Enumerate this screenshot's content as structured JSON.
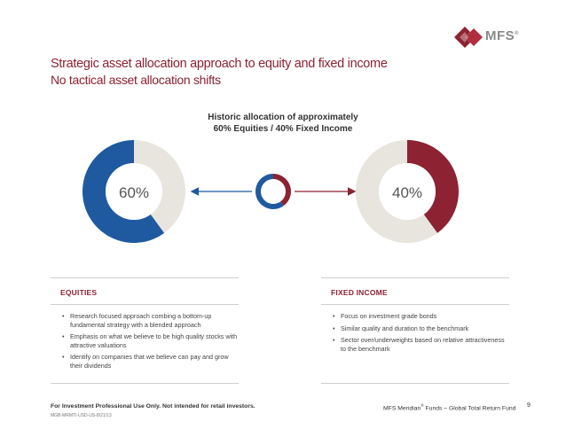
{
  "header": {
    "logo_text": "MFS",
    "logo_mark": "®",
    "title": "Strategic asset allocation approach to equity and fixed income",
    "subtitle": "No tactical asset allocation shifts"
  },
  "chart_data": {
    "type": "pie",
    "title_lines": [
      "Historic allocation of approximately",
      "60% Equities / 40% Fixed Income"
    ],
    "charts": [
      {
        "name": "equities-donut",
        "value": 60,
        "label": "60%",
        "color": "#1f5aa0",
        "remainder_color": "#e7e5dd"
      },
      {
        "name": "center-donut",
        "segments": [
          60,
          40
        ],
        "colors": [
          "#1f5aa0",
          "#8c2232"
        ]
      },
      {
        "name": "fixed-income-donut",
        "value": 40,
        "label": "40%",
        "color": "#8c2232",
        "remainder_color": "#e7e5dd"
      }
    ],
    "colors": {
      "equity": "#1f5aa0",
      "fixed_income": "#8c2232",
      "neutral": "#e7e5dd"
    }
  },
  "equities": {
    "heading": "EQUITIES",
    "bullets": [
      "Research focused approach combing a bottom-up fundamental strategy with a blended approach",
      "Emphasis on what we believe to be high quality stocks with attractive valuations",
      "Identify on companies that we believe can pay and grow their dividends"
    ]
  },
  "fixed_income": {
    "heading": "FIXED INCOME",
    "bullets": [
      "Focus on investment grade bonds",
      "Similar quality and duration to the benchmark",
      "Sector over/underweights based on relative attractiveness to the benchmark"
    ]
  },
  "footer": {
    "disclaimer": "For Investment Professional Use Only. Not intended for retail investors.",
    "code": "MGB-MRMTI-USD-US-8/21/13",
    "fund_prefix": "MFS Meridian",
    "fund_mark": "®",
    "fund_suffix": " Funds – Global Total Return Fund",
    "page": "9"
  }
}
